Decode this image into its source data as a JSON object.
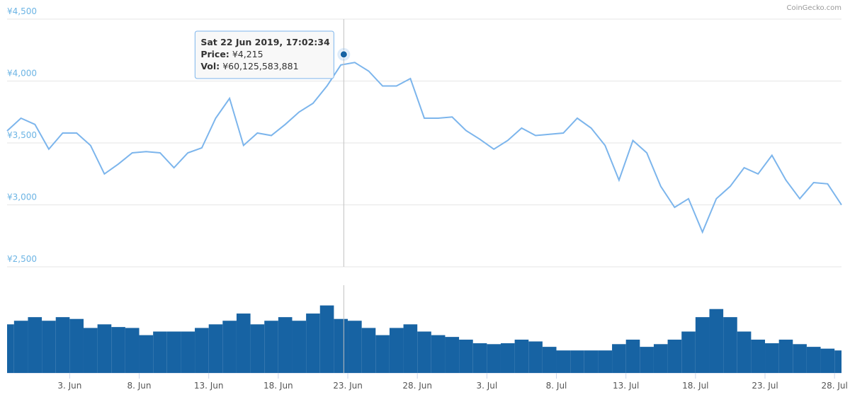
{
  "chart_data": {
    "type": "line",
    "credits": "CoinGecko.com",
    "x": [
      "2019-05-29T12:00",
      "2019-05-30T12:00",
      "2019-05-31T12:00",
      "2019-06-01T12:00",
      "2019-06-02T12:00",
      "2019-06-03T12:00",
      "2019-06-04T12:00",
      "2019-06-05T12:00",
      "2019-06-06T12:00",
      "2019-06-07T12:00",
      "2019-06-08T12:00",
      "2019-06-09T12:00",
      "2019-06-10T12:00",
      "2019-06-11T12:00",
      "2019-06-12T12:00",
      "2019-06-13T12:00",
      "2019-06-14T12:00",
      "2019-06-15T12:00",
      "2019-06-16T12:00",
      "2019-06-17T12:00",
      "2019-06-18T12:00",
      "2019-06-19T12:00",
      "2019-06-20T12:00",
      "2019-06-21T12:00",
      "2019-06-22T12:00",
      "2019-06-23T12:00",
      "2019-06-24T12:00",
      "2019-06-25T12:00",
      "2019-06-26T12:00",
      "2019-06-27T12:00",
      "2019-06-28T12:00",
      "2019-06-29T12:00",
      "2019-06-30T12:00",
      "2019-07-01T12:00",
      "2019-07-02T12:00",
      "2019-07-03T12:00",
      "2019-07-04T12:00",
      "2019-07-05T12:00",
      "2019-07-06T12:00",
      "2019-07-07T12:00",
      "2019-07-08T12:00",
      "2019-07-09T12:00",
      "2019-07-10T12:00",
      "2019-07-11T12:00",
      "2019-07-12T12:00",
      "2019-07-13T12:00",
      "2019-07-14T12:00",
      "2019-07-15T12:00",
      "2019-07-16T12:00",
      "2019-07-17T12:00",
      "2019-07-18T12:00",
      "2019-07-19T12:00",
      "2019-07-20T12:00",
      "2019-07-21T12:00",
      "2019-07-22T12:00",
      "2019-07-23T12:00",
      "2019-07-24T12:00",
      "2019-07-25T12:00",
      "2019-07-26T12:00",
      "2019-07-27T12:00",
      "2019-07-28T12:00"
    ],
    "series": [
      {
        "color": "#7cb5ec",
        "values": [
          3597,
          3700,
          3650,
          3450,
          3580,
          3580,
          3480,
          3250,
          3330,
          3420,
          3430,
          3420,
          3300,
          3420,
          3460,
          3700,
          3860,
          3480,
          3580,
          3560,
          3650,
          3750,
          3820,
          3960,
          4130,
          4150,
          4080,
          3960,
          3960,
          4020,
          3700,
          3700,
          3710,
          3600,
          3530,
          3450,
          3520,
          3620,
          3560,
          3570,
          3580,
          3700,
          3620,
          3480,
          3200,
          3520,
          3420,
          3150,
          2980,
          3050,
          2780,
          3050,
          3150,
          3300,
          3250,
          3400,
          3200,
          3050,
          3180,
          3170,
          3000
        ]
      },
      {
        "color": "#1763a3",
        "axis": "y2",
        "values": [
          54000000000.0,
          58000000000.0,
          62000000000.0,
          58000000000.0,
          62000000000.0,
          60000000000.0,
          50000000000.0,
          54000000000.0,
          51000000000.0,
          50000000000.0,
          42000000000.0,
          46000000000.0,
          46000000000.0,
          46000000000.0,
          50000000000.0,
          54000000000.0,
          58000000000.0,
          66000000000.0,
          54000000000.0,
          58000000000.0,
          62000000000.0,
          58000000000.0,
          66000000000.0,
          75000000000.0,
          60000000000.0,
          58000000000.0,
          50000000000.0,
          42000000000.0,
          50000000000.0,
          54000000000.0,
          46000000000.0,
          42000000000.0,
          40000000000.0,
          37000000000.0,
          33000000000.0,
          32000000000.0,
          33000000000.0,
          37000000000.0,
          35000000000.0,
          29000000000.0,
          25000000000.0,
          25000000000.0,
          25000000000.0,
          25000000000.0,
          32000000000.0,
          37000000000.0,
          29000000000.0,
          32000000000.0,
          37000000000.0,
          46000000000.0,
          62000000000.0,
          71000000000.0,
          62000000000.0,
          46000000000.0,
          37000000000.0,
          33000000000.0,
          37000000000.0,
          32000000000.0,
          29000000000.0,
          27000000000.0,
          25000000000.0
        ]
      }
    ],
    "xlim": [
      "2019-05-29T12:00",
      "2019-07-28T12:00"
    ],
    "xticks": [
      {
        "value": "2019-06-03T00:00",
        "label": "3. Jun"
      },
      {
        "value": "2019-06-08T00:00",
        "label": "8. Jun"
      },
      {
        "value": "2019-06-13T00:00",
        "label": "13. Jun"
      },
      {
        "value": "2019-06-18T00:00",
        "label": "18. Jun"
      },
      {
        "value": "2019-06-23T00:00",
        "label": "23. Jun"
      },
      {
        "value": "2019-06-28T00:00",
        "label": "28. Jun"
      },
      {
        "value": "2019-07-03T00:00",
        "label": "3. Jul"
      },
      {
        "value": "2019-07-08T00:00",
        "label": "8. Jul"
      },
      {
        "value": "2019-07-13T00:00",
        "label": "13. Jul"
      },
      {
        "value": "2019-07-18T00:00",
        "label": "18. Jul"
      },
      {
        "value": "2019-07-23T00:00",
        "label": "23. Jul"
      },
      {
        "value": "2019-07-28T00:00",
        "label": "28. Jul"
      }
    ],
    "ylim": [
      2500,
      4500
    ],
    "yticks": [
      {
        "value": 2500,
        "label": "¥2,500"
      },
      {
        "value": 3000,
        "label": "¥3,000"
      },
      {
        "value": 3500,
        "label": "¥3,500"
      },
      {
        "value": 4000,
        "label": "¥4,000"
      },
      {
        "value": 4500,
        "label": "¥4,500"
      }
    ],
    "grid": true,
    "tooltip": {
      "title": "Sat 22 Jun 2019, 17:02:34",
      "x": "2019-06-22T17:02:34",
      "items": [
        {
          "name": "Price:",
          "value": 4215,
          "value_label": "¥4,215"
        },
        {
          "name": "Vol:",
          "value": 60125583881,
          "value_label": "¥60,125,583,881"
        }
      ]
    }
  }
}
